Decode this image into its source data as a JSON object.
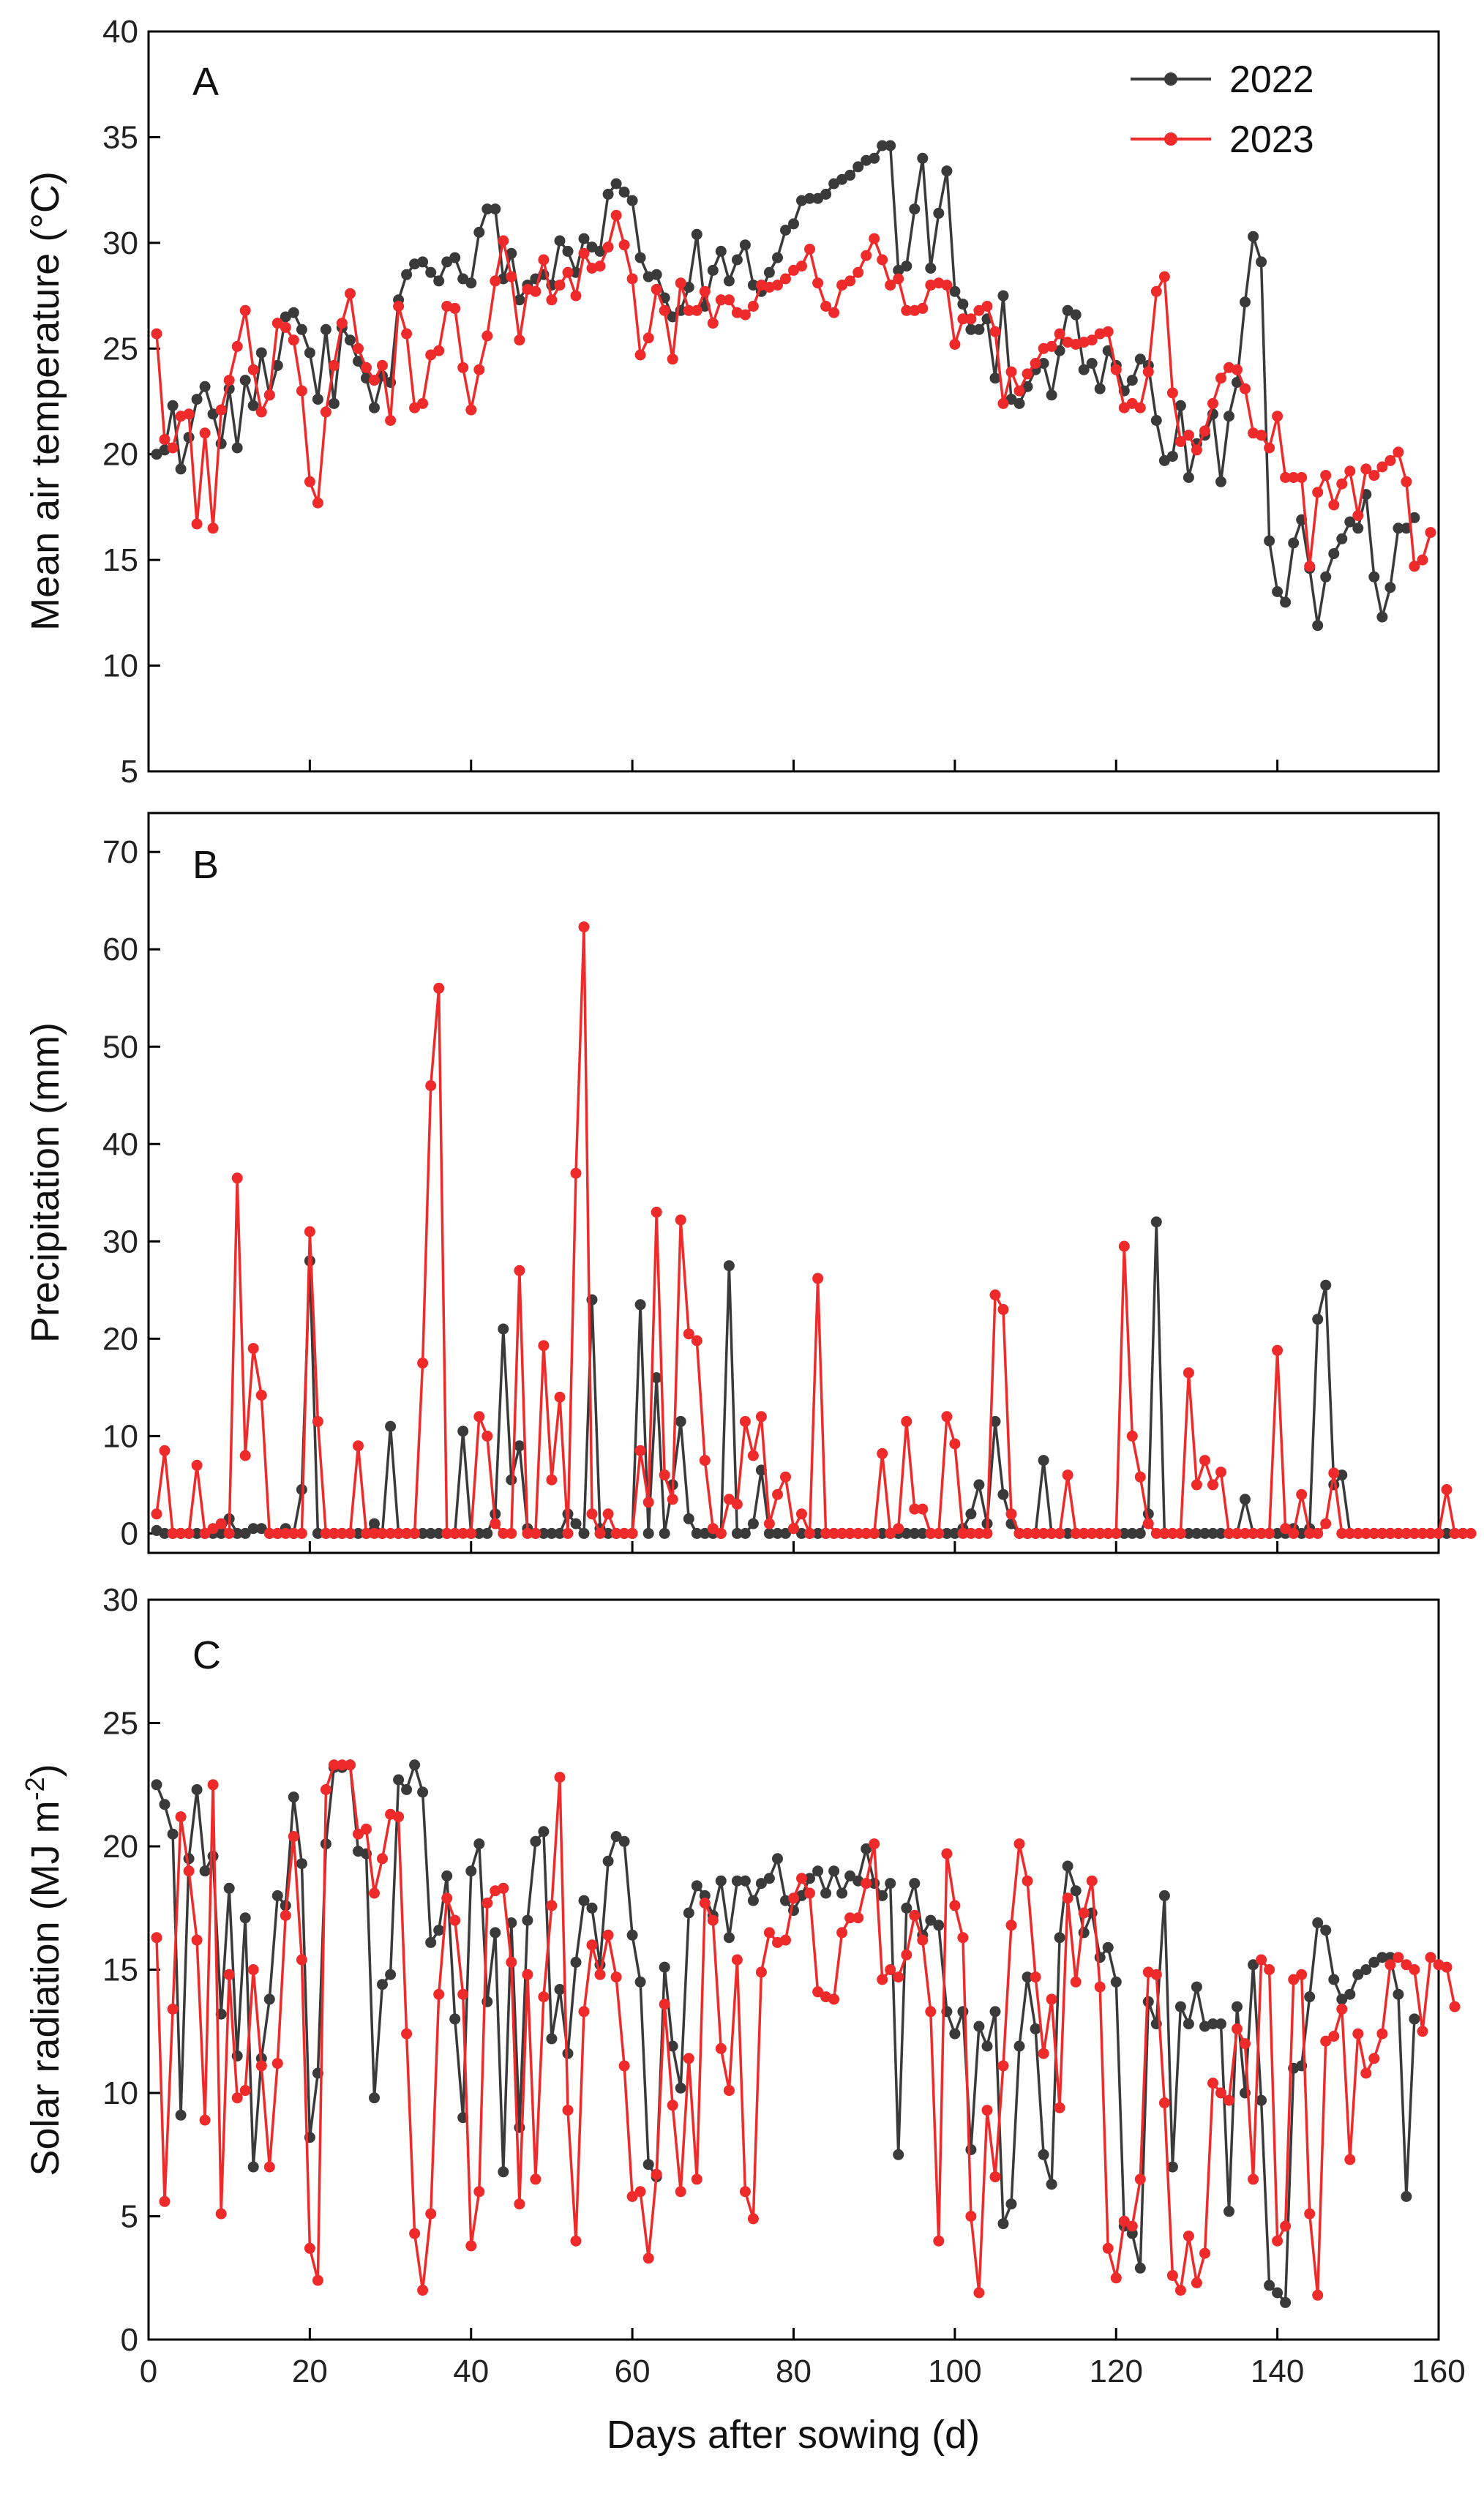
{
  "colors": {
    "s2022": "#3a3a3a",
    "s2023": "#ee2a2a"
  },
  "chart_data": [
    {
      "type": "line",
      "panel_label": "A",
      "title": "",
      "xlabel": "",
      "ylabel": "Mean air temperature (°C)",
      "xlim": [
        0,
        160
      ],
      "ylim": [
        5,
        40
      ],
      "xticks": [
        0,
        20,
        40,
        60,
        80,
        100,
        120,
        140,
        160
      ],
      "xtick_labels": [
        "",
        "",
        "",
        "",
        "",
        "",
        "",
        "",
        ""
      ],
      "yticks": [
        5,
        10,
        15,
        20,
        25,
        30,
        35,
        40
      ],
      "ytick_labels": [
        "5",
        "10",
        "15",
        "20",
        "25",
        "30",
        "35",
        "40"
      ],
      "legend": {
        "position": "top-right",
        "entries": [
          "2022",
          "2023"
        ]
      },
      "series": [
        {
          "name": "2022",
          "color_key": "s2022",
          "values": [
            20.0,
            20.2,
            22.3,
            19.3,
            20.8,
            22.6,
            23.2,
            21.9,
            20.5,
            23.1,
            20.3,
            23.5,
            22.3,
            24.8,
            22.8,
            24.2,
            26.5,
            26.7,
            25.9,
            24.8,
            22.6,
            25.9,
            22.4,
            26.0,
            25.4,
            24.4,
            23.6,
            22.2,
            23.7,
            23.4,
            27.3,
            28.5,
            29.0,
            29.1,
            28.6,
            28.2,
            29.1,
            29.3,
            28.3,
            28.1,
            30.5,
            31.6,
            31.6,
            28.3,
            29.5,
            27.3,
            28.0,
            28.3,
            28.5,
            28.0,
            30.1,
            29.6,
            28.6,
            30.2,
            29.8,
            29.6,
            32.3,
            32.8,
            32.4,
            32.0,
            29.3,
            28.4,
            28.5,
            27.4,
            26.5,
            26.8,
            27.9,
            30.4,
            27.0,
            28.7,
            29.6,
            28.2,
            29.2,
            29.9,
            28.0,
            27.7,
            28.6,
            29.3,
            30.6,
            30.9,
            32.0,
            32.1,
            32.1,
            32.3,
            32.8,
            33.0,
            33.2,
            33.6,
            33.9,
            34.0,
            34.6,
            34.6,
            28.7,
            28.9,
            31.6,
            34.0,
            28.8,
            31.4,
            33.4,
            27.7,
            27.1,
            25.9,
            25.9,
            26.4,
            23.6,
            27.5,
            22.6,
            22.4,
            23.2,
            24.0,
            24.3,
            22.8,
            24.9,
            26.8,
            26.6,
            24.0,
            24.3,
            23.1,
            24.9,
            24.2,
            23.0,
            23.5,
            24.5,
            24.2,
            21.6,
            19.7,
            19.9,
            22.3,
            18.9,
            20.5,
            20.9,
            21.9,
            18.7,
            21.8,
            23.4,
            27.2,
            30.3,
            29.1,
            15.9,
            13.5,
            13.0,
            15.8,
            16.9,
            14.6,
            11.9,
            14.2,
            15.3,
            16.0,
            16.8,
            16.5,
            18.1,
            14.2,
            12.3,
            13.7,
            16.5,
            16.5,
            17.0
          ]
        },
        {
          "name": "2023",
          "color_key": "s2023",
          "values": [
            25.7,
            20.7,
            20.3,
            21.8,
            21.9,
            16.7,
            21.0,
            16.5,
            22.1,
            23.5,
            25.1,
            26.8,
            24.0,
            22.0,
            22.8,
            26.2,
            26.0,
            25.4,
            23.0,
            18.7,
            17.7,
            22.0,
            24.2,
            26.2,
            27.6,
            25.0,
            24.1,
            23.5,
            24.2,
            21.6,
            27.0,
            25.7,
            22.2,
            22.4,
            24.7,
            24.9,
            27.0,
            26.9,
            24.1,
            22.1,
            24.0,
            25.6,
            28.2,
            30.1,
            28.4,
            25.4,
            27.8,
            27.7,
            29.2,
            27.3,
            28.0,
            28.6,
            27.5,
            29.5,
            28.8,
            28.9,
            29.8,
            31.3,
            29.9,
            28.3,
            24.7,
            25.5,
            27.8,
            26.8,
            24.5,
            28.1,
            26.8,
            26.8,
            27.7,
            26.2,
            27.3,
            27.3,
            26.7,
            26.6,
            27.0,
            28.0,
            27.9,
            28.0,
            28.3,
            28.7,
            28.9,
            29.7,
            28.1,
            27.0,
            26.7,
            28.0,
            28.2,
            28.6,
            29.4,
            30.2,
            29.2,
            28.0,
            28.3,
            26.8,
            26.8,
            26.9,
            28.0,
            28.1,
            28.0,
            25.2,
            26.4,
            26.4,
            26.8,
            27.0,
            25.8,
            22.4,
            23.9,
            23.0,
            23.8,
            24.3,
            25.0,
            25.1,
            25.7,
            25.3,
            25.2,
            25.3,
            25.4,
            25.7,
            25.8,
            24.0,
            22.2,
            22.4,
            22.2,
            23.9,
            27.7,
            28.4,
            22.9,
            20.6,
            20.9,
            20.2,
            21.1,
            22.4,
            23.6,
            24.1,
            24.0,
            23.1,
            21.0,
            20.9,
            20.3,
            21.8,
            18.9,
            18.9,
            18.9,
            14.7,
            18.2,
            19.0,
            17.6,
            18.6,
            19.2,
            17.1,
            19.3,
            19.0,
            19.4,
            19.7,
            20.1,
            18.7,
            14.7,
            15.0,
            16.3
          ]
        }
      ]
    },
    {
      "type": "line",
      "panel_label": "B",
      "title": "",
      "xlabel": "",
      "ylabel": "Precipitation (mm)",
      "xlim": [
        0,
        160
      ],
      "ylim": [
        -2,
        74
      ],
      "xticks": [
        0,
        20,
        40,
        60,
        80,
        100,
        120,
        140,
        160
      ],
      "xtick_labels": [
        "",
        "",
        "",
        "",
        "",
        "",
        "",
        "",
        ""
      ],
      "yticks": [
        0,
        10,
        20,
        30,
        40,
        50,
        60,
        70
      ],
      "ytick_labels": [
        "0",
        "10",
        "20",
        "30",
        "40",
        "50",
        "60",
        "70"
      ],
      "series": [
        {
          "name": "2022",
          "color_key": "s2022",
          "values": [
            0.3,
            0,
            0,
            0,
            0,
            0,
            0,
            0,
            0,
            1.5,
            0,
            0,
            0.5,
            0.5,
            0,
            0,
            0.5,
            0,
            4.5,
            28,
            0,
            0,
            0,
            0,
            0,
            0,
            0,
            1,
            0,
            11,
            0,
            0,
            0,
            0,
            0,
            0,
            0,
            0,
            10.5,
            0,
            0,
            0,
            2,
            21,
            5.5,
            9,
            0.5,
            0,
            0,
            0,
            0,
            2,
            1,
            0,
            24,
            0.5,
            0,
            0,
            0,
            0,
            23.5,
            0,
            16,
            0,
            5,
            11.5,
            1.5,
            0,
            0,
            0,
            0,
            27.5,
            0,
            0,
            1,
            6.5,
            0,
            0,
            0,
            0.5,
            0,
            0,
            0,
            0,
            0,
            0,
            0,
            0,
            0,
            0,
            0,
            0,
            0,
            0,
            0,
            0,
            0,
            0,
            0,
            0,
            0.5,
            2,
            5,
            1,
            11.5,
            4,
            1,
            0,
            0,
            0,
            7.5,
            0,
            0,
            0,
            0,
            0,
            0,
            0,
            0,
            0,
            0,
            0,
            0,
            2,
            32,
            0,
            0,
            0,
            0,
            0,
            0,
            0,
            0,
            0,
            0,
            3.5,
            0,
            0,
            0,
            0,
            0,
            0.5,
            0,
            0.5,
            22,
            25.5,
            5,
            6,
            0,
            0,
            0,
            0,
            0,
            0,
            0,
            0,
            0,
            0,
            0,
            0,
            0,
            0,
            0
          ]
        },
        {
          "name": "2023",
          "color_key": "s2023",
          "values": [
            2.0,
            8.5,
            0,
            0,
            0,
            7,
            0,
            0.5,
            1,
            0,
            36.5,
            8,
            19,
            14.2,
            0,
            0,
            0,
            0,
            0,
            31,
            11.5,
            0,
            0,
            0,
            0,
            9,
            0,
            0,
            0,
            0,
            0,
            0,
            0,
            17.5,
            46,
            56,
            0,
            0,
            0,
            0,
            12,
            10,
            1,
            0,
            0,
            27,
            0,
            0,
            19.3,
            5.5,
            14,
            0,
            37,
            62.3,
            2,
            0,
            2,
            0,
            0,
            0,
            8.5,
            3.2,
            33,
            6,
            3.5,
            32.2,
            20.5,
            19.8,
            7.5,
            0.5,
            0,
            3.5,
            3,
            11.5,
            8,
            12,
            1,
            4,
            5.8,
            0.5,
            2,
            0,
            26.2,
            0,
            0,
            0,
            0,
            0,
            0,
            0,
            8.2,
            0,
            0.5,
            11.5,
            2.5,
            2.5,
            0,
            0,
            12,
            9.2,
            0,
            0,
            0,
            0,
            24.5,
            23,
            2,
            0,
            0,
            0,
            0,
            0,
            0,
            6,
            0,
            0,
            0,
            0,
            0,
            0,
            29.5,
            10,
            5.8,
            1,
            0,
            0,
            0,
            0,
            16.5,
            5,
            7.5,
            5,
            6.3,
            0,
            0,
            0,
            0,
            0,
            0,
            18.8,
            0.5,
            0,
            4,
            0,
            0,
            1,
            6.2,
            0,
            0,
            0,
            0,
            0,
            0,
            0,
            0,
            0,
            0,
            0,
            0,
            0,
            4.5,
            0,
            0,
            0
          ]
        }
      ]
    },
    {
      "type": "line",
      "panel_label": "C",
      "title": "",
      "xlabel": "Days after sowing (d)",
      "ylabel_main": "Solar radiation (MJ m",
      "ylabel_sup": "-2",
      "ylabel_close": ")",
      "xlim": [
        0,
        160
      ],
      "ylim": [
        0,
        30
      ],
      "xticks": [
        0,
        20,
        40,
        60,
        80,
        100,
        120,
        140,
        160
      ],
      "xtick_labels": [
        "0",
        "20",
        "40",
        "60",
        "80",
        "100",
        "120",
        "140",
        "160"
      ],
      "yticks": [
        0,
        5,
        10,
        15,
        20,
        25,
        30
      ],
      "ytick_labels": [
        "0",
        "5",
        "10",
        "15",
        "20",
        "25",
        "30"
      ],
      "series": [
        {
          "name": "2022",
          "color_key": "s2022",
          "values": [
            22.5,
            21.7,
            20.5,
            9.1,
            19.5,
            22.3,
            19.0,
            19.6,
            13.2,
            18.3,
            11.5,
            17.1,
            7.0,
            11.4,
            13.8,
            18.0,
            17.6,
            22.0,
            19.3,
            8.2,
            10.8,
            20.1,
            23.2,
            23.2,
            23.3,
            19.8,
            19.7,
            9.8,
            14.4,
            14.8,
            22.7,
            22.3,
            23.3,
            22.2,
            16.1,
            16.6,
            18.8,
            13.0,
            9.0,
            19.0,
            20.1,
            13.7,
            16.5,
            6.8,
            16.9,
            8.6,
            17.0,
            20.2,
            20.6,
            12.2,
            14.2,
            11.6,
            15.3,
            17.8,
            17.5,
            15.2,
            19.4,
            20.4,
            20.2,
            16.4,
            14.5,
            7.1,
            6.6,
            15.1,
            11.9,
            10.2,
            17.3,
            18.4,
            18.0,
            17.2,
            18.6,
            16.3,
            18.6,
            18.6,
            17.8,
            18.5,
            18.7,
            19.5,
            17.8,
            17.4,
            18.0,
            18.7,
            19.0,
            18.1,
            19.0,
            18.1,
            18.8,
            18.6,
            19.9,
            18.5,
            18.0,
            18.5,
            7.5,
            17.5,
            18.5,
            16.4,
            17.0,
            16.8,
            13.3,
            12.4,
            13.3,
            7.7,
            12.7,
            11.9,
            13.3,
            4.7,
            5.5,
            11.9,
            14.7,
            12.6,
            7.5,
            6.3,
            16.3,
            19.2,
            18.2,
            16.5,
            17.3,
            15.5,
            15.9,
            14.5,
            4.6,
            4.3,
            2.9,
            13.7,
            12.8,
            18.0,
            7.0,
            13.5,
            12.8,
            14.3,
            12.7,
            12.8,
            12.8,
            5.2,
            13.5,
            10.0,
            15.2,
            9.7,
            2.2,
            1.9,
            1.5,
            11.0,
            11.1,
            13.9,
            16.9,
            16.6,
            14.6,
            13.8,
            14.0,
            14.8,
            15.0,
            15.3,
            15.5,
            15.5,
            14.0,
            5.8,
            13.0
          ]
        },
        {
          "name": "2023",
          "color_key": "s2023",
          "values": [
            16.3,
            5.6,
            13.4,
            21.2,
            19.0,
            16.2,
            8.9,
            22.5,
            5.1,
            14.8,
            9.8,
            10.1,
            15.0,
            11.1,
            7.0,
            11.2,
            17.2,
            20.4,
            15.4,
            3.7,
            2.4,
            22.3,
            23.3,
            23.3,
            23.3,
            20.5,
            20.7,
            18.1,
            19.5,
            21.3,
            21.2,
            12.4,
            4.3,
            2.0,
            5.1,
            14.0,
            17.9,
            17.0,
            14.0,
            3.8,
            6.0,
            17.7,
            18.2,
            18.3,
            15.3,
            5.5,
            14.8,
            6.5,
            13.9,
            17.6,
            22.8,
            9.3,
            4.0,
            13.3,
            16.0,
            14.8,
            16.4,
            14.7,
            11.1,
            5.8,
            6.0,
            3.3,
            6.7,
            13.6,
            9.5,
            6.0,
            11.4,
            6.5,
            17.7,
            17.0,
            11.8,
            10.1,
            15.4,
            6.0,
            4.9,
            14.9,
            16.5,
            16.1,
            16.2,
            17.9,
            18.7,
            18.1,
            14.1,
            13.9,
            13.8,
            16.5,
            17.1,
            17.1,
            18.5,
            20.1,
            14.6,
            15.0,
            14.7,
            15.6,
            17.2,
            16.2,
            13.3,
            4.0,
            19.7,
            17.6,
            16.3,
            5.0,
            1.9,
            9.3,
            6.6,
            11.1,
            16.8,
            20.1,
            18.6,
            14.7,
            11.6,
            13.8,
            9.4,
            17.9,
            14.5,
            17.3,
            18.6,
            14.3,
            3.7,
            2.5,
            4.8,
            4.6,
            6.5,
            14.9,
            14.8,
            9.6,
            2.6,
            2.0,
            4.2,
            2.3,
            3.5,
            10.4,
            10.0,
            9.7,
            12.6,
            12.0,
            6.5,
            15.4,
            15.0,
            4.0,
            4.6,
            14.6,
            14.8,
            5.1,
            1.8,
            12.1,
            12.3,
            13.4,
            7.3,
            12.4,
            10.8,
            11.4,
            12.4,
            15.2,
            15.5,
            15.2,
            15.0,
            12.5,
            15.5,
            15.2,
            15.1,
            13.5
          ]
        }
      ]
    }
  ]
}
